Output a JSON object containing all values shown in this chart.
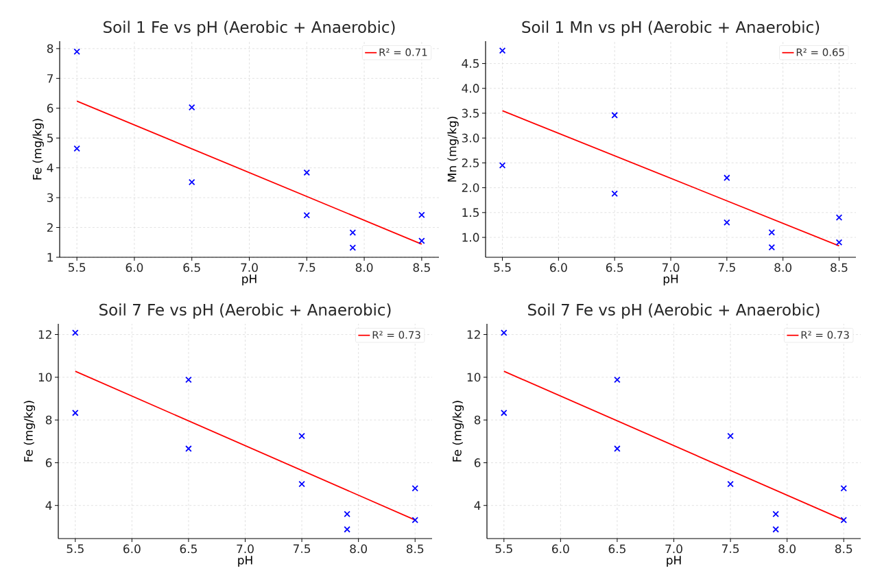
{
  "chart_data": [
    {
      "type": "scatter",
      "title": "Soil 1 Fe vs pH (Aerobic + Anaerobic)",
      "xlabel": "pH",
      "ylabel": "Fe (mg/kg)",
      "xlim": [
        5.35,
        8.65
      ],
      "ylim": [
        1,
        8.25
      ],
      "xticks": [
        {
          "value": 5.5,
          "label": "5.5"
        },
        {
          "value": 6,
          "label": "6.0"
        },
        {
          "value": 6.5,
          "label": "6.5"
        },
        {
          "value": 7,
          "label": "7.0"
        },
        {
          "value": 7.5,
          "label": "7.5"
        },
        {
          "value": 8,
          "label": "8.0"
        },
        {
          "value": 8.5,
          "label": "8.5"
        }
      ],
      "yticks": [
        1,
        2,
        3,
        4,
        5,
        6,
        7,
        8
      ],
      "grid": true,
      "legend": "top right",
      "series": [
        {
          "marker": "cross",
          "color": "#0000ff",
          "x": [
            5.5,
            5.5,
            6.5,
            6.5,
            7.5,
            7.5,
            7.9,
            7.9,
            8.5,
            8.5
          ],
          "values": [
            7.9,
            4.65,
            6.03,
            3.52,
            3.84,
            2.41,
            1.83,
            1.32,
            2.42,
            1.55
          ]
        },
        {
          "type": "line",
          "name": "R² = 0.71",
          "color": "#ff0000",
          "x": [
            5.5,
            8.5
          ],
          "values": [
            6.24,
            1.44
          ]
        }
      ]
    },
    {
      "type": "scatter",
      "title": "Soil 1 Mn vs pH (Aerobic + Anaerobic)",
      "xlabel": "pH",
      "ylabel": "Mn (mg/kg)",
      "xlim": [
        5.35,
        8.65
      ],
      "ylim": [
        0.6,
        4.95
      ],
      "xticks": [
        {
          "value": 5.5,
          "label": "5.5"
        },
        {
          "value": 6,
          "label": "6.0"
        },
        {
          "value": 6.5,
          "label": "6.5"
        },
        {
          "value": 7,
          "label": "7.0"
        },
        {
          "value": 7.5,
          "label": "7.5"
        },
        {
          "value": 8,
          "label": "8.0"
        },
        {
          "value": 8.5,
          "label": "8.5"
        }
      ],
      "yticks": [
        {
          "value": 1,
          "label": "1.0"
        },
        1.5,
        {
          "value": 2,
          "label": "2.0"
        },
        2.5,
        {
          "value": 3,
          "label": "3.0"
        },
        3.5,
        {
          "value": 4,
          "label": "4.0"
        },
        4.5
      ],
      "grid": true,
      "legend": "top right",
      "series": [
        {
          "marker": "cross",
          "color": "#0000ff",
          "x": [
            5.5,
            5.5,
            6.5,
            6.5,
            7.5,
            7.5,
            7.9,
            7.9,
            8.5,
            8.5
          ],
          "values": [
            4.76,
            2.45,
            3.46,
            1.88,
            2.2,
            1.3,
            1.1,
            0.8,
            1.4,
            0.9
          ]
        },
        {
          "type": "line",
          "name": "R² = 0.65",
          "color": "#ff0000",
          "x": [
            5.5,
            8.5
          ],
          "values": [
            3.55,
            0.83
          ]
        }
      ]
    },
    {
      "type": "scatter",
      "title": "Soil 7 Fe vs pH (Aerobic + Anaerobic)",
      "xlabel": "pH",
      "ylabel": "Fe (mg/kg)",
      "xlim": [
        5.35,
        8.65
      ],
      "ylim": [
        2.45,
        12.5
      ],
      "xticks": [
        {
          "value": 5.5,
          "label": "5.5"
        },
        {
          "value": 6,
          "label": "6.0"
        },
        {
          "value": 6.5,
          "label": "6.5"
        },
        {
          "value": 7,
          "label": "7.0"
        },
        {
          "value": 7.5,
          "label": "7.5"
        },
        {
          "value": 8,
          "label": "8.0"
        },
        {
          "value": 8.5,
          "label": "8.5"
        }
      ],
      "yticks": [
        4,
        6,
        8,
        10,
        12
      ],
      "grid": true,
      "legend": "top right",
      "series": [
        {
          "marker": "cross",
          "color": "#0000ff",
          "x": [
            5.5,
            5.5,
            6.5,
            6.5,
            7.5,
            7.5,
            7.9,
            7.9,
            8.5,
            8.5
          ],
          "values": [
            12.08,
            8.33,
            9.88,
            6.66,
            7.25,
            5.0,
            3.6,
            2.88,
            4.8,
            3.32
          ]
        },
        {
          "type": "line",
          "name": "R² = 0.73",
          "color": "#ff0000",
          "x": [
            5.5,
            8.5
          ],
          "values": [
            10.28,
            3.32
          ]
        }
      ]
    },
    {
      "type": "scatter",
      "title": "Soil 7 Fe vs pH (Aerobic + Anaerobic)",
      "xlabel": "pH",
      "ylabel": "Fe (mg/kg)",
      "xlim": [
        5.35,
        8.65
      ],
      "ylim": [
        2.45,
        12.5
      ],
      "xticks": [
        {
          "value": 5.5,
          "label": "5.5"
        },
        {
          "value": 6,
          "label": "6.0"
        },
        {
          "value": 6.5,
          "label": "6.5"
        },
        {
          "value": 7,
          "label": "7.0"
        },
        {
          "value": 7.5,
          "label": "7.5"
        },
        {
          "value": 8,
          "label": "8.0"
        },
        {
          "value": 8.5,
          "label": "8.5"
        }
      ],
      "yticks": [
        4,
        6,
        8,
        10,
        12
      ],
      "grid": true,
      "legend": "top right",
      "series": [
        {
          "marker": "cross",
          "color": "#0000ff",
          "x": [
            5.5,
            5.5,
            6.5,
            6.5,
            7.5,
            7.5,
            7.9,
            7.9,
            8.5,
            8.5
          ],
          "values": [
            12.08,
            8.33,
            9.88,
            6.66,
            7.25,
            5.0,
            3.6,
            2.88,
            4.8,
            3.32
          ]
        },
        {
          "type": "line",
          "name": "R² = 0.73",
          "color": "#ff0000",
          "x": [
            5.5,
            8.5
          ],
          "values": [
            10.28,
            3.32
          ]
        }
      ]
    }
  ]
}
